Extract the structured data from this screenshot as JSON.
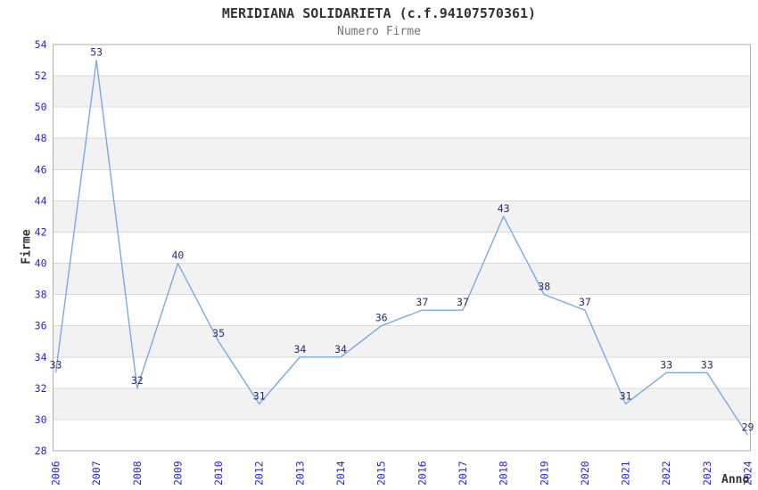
{
  "header": {
    "title": "MERIDIANA SOLIDARIETA (c.f.94107570361)",
    "subtitle": "Numero Firme"
  },
  "chart_data": {
    "type": "line",
    "title": "MERIDIANA SOLIDARIETA (c.f.94107570361)",
    "subtitle": "Numero Firme",
    "xlabel": "Anno",
    "ylabel": "Firme",
    "categories": [
      "2006",
      "2007",
      "2008",
      "2009",
      "2010",
      "2012",
      "2013",
      "2014",
      "2015",
      "2016",
      "2017",
      "2018",
      "2019",
      "2020",
      "2021",
      "2022",
      "2023",
      "2024"
    ],
    "values": [
      33,
      53,
      32,
      40,
      35,
      31,
      34,
      34,
      36,
      37,
      37,
      43,
      38,
      37,
      31,
      33,
      33,
      29
    ],
    "point_labels": [
      "33",
      "53",
      "32",
      "40",
      "35",
      "31",
      "34",
      "34",
      "36",
      "37",
      "37",
      "43",
      "38",
      "37",
      "31",
      "33",
      "33",
      "29"
    ],
    "ylim": [
      28,
      54
    ],
    "yticks": [
      28,
      30,
      32,
      34,
      36,
      38,
      40,
      42,
      44,
      46,
      48,
      50,
      52,
      54
    ],
    "ytick_step": 2,
    "grid": true,
    "alternating_bands": true,
    "legend": "none",
    "markers": "none"
  },
  "colors": {
    "axis_label_blue": "#2626cf",
    "data_label_navy": "#2a2a70",
    "line_blue": "#79aae3",
    "stripe_gray": "#f2f2f2",
    "gridline": "#d9d9d9",
    "plot_border": "#b0b0b0",
    "title_color": "#333333",
    "subtitle_color": "#757575",
    "background": "#ffffff"
  }
}
